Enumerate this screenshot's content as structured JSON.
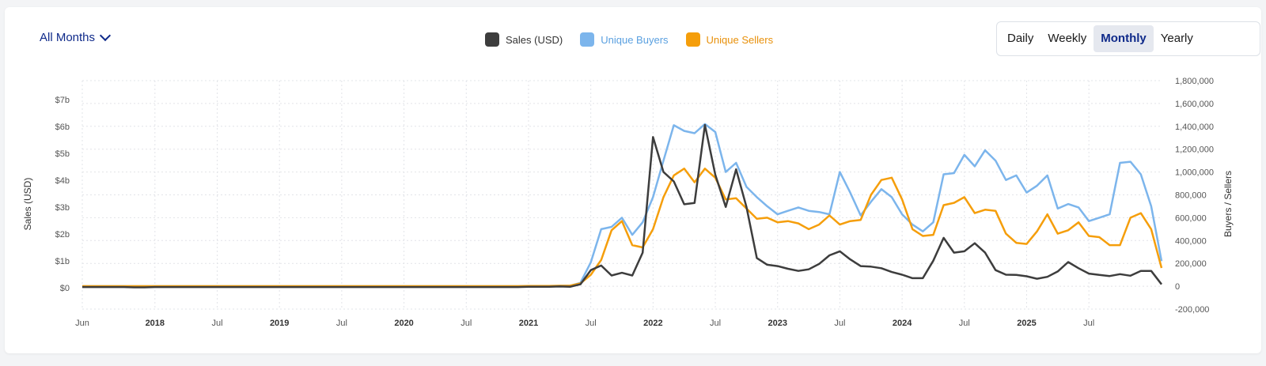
{
  "filter": {
    "label": "All Months"
  },
  "legend": [
    {
      "label": "Sales (USD)",
      "color": "#3d3d3d"
    },
    {
      "label": "Unique Buyers",
      "color": "#7cb5ec"
    },
    {
      "label": "Unique Sellers",
      "color": "#f59e0b"
    }
  ],
  "range_buttons": [
    {
      "label": "Daily",
      "active": false
    },
    {
      "label": "Weekly",
      "active": false
    },
    {
      "label": "Monthly",
      "active": true
    },
    {
      "label": "Yearly",
      "active": false
    }
  ],
  "chart_data": {
    "type": "line",
    "x_labels": [
      "Jun",
      "2018",
      "Jul",
      "2019",
      "Jul",
      "2020",
      "Jul",
      "2021",
      "Jul",
      "2022",
      "Jul",
      "2023",
      "Jul",
      "2024",
      "Jul",
      "2025",
      "Jul"
    ],
    "x_bold_labels": [
      "2018",
      "2019",
      "2020",
      "2021",
      "2022",
      "2023",
      "2024",
      "2025"
    ],
    "y_left": {
      "label": "Sales (USD)",
      "ticks": [
        "$0",
        "$1b",
        "$2b",
        "$3b",
        "$4b",
        "$5b",
        "$6b",
        "$7b"
      ],
      "range": [
        -0.8,
        7.7
      ]
    },
    "y_right": {
      "label": "Buyers / Sellers",
      "ticks": [
        "-200,000",
        "0",
        "200,000",
        "400,000",
        "600,000",
        "800,000",
        "1,000,000",
        "1,200,000",
        "1,400,000",
        "1,600,000",
        "1,800,000"
      ],
      "range": [
        -200000,
        1800000
      ]
    },
    "grid": true,
    "series": [
      {
        "name": "Sales (USD)",
        "axis": "left",
        "color": "#3d3d3d",
        "values": [
          0.02,
          0.02,
          0.02,
          0.02,
          0.02,
          0.01,
          0.01,
          0.02,
          0.02,
          0.02,
          0.02,
          0.02,
          0.02,
          0.02,
          0.02,
          0.02,
          0.02,
          0.02,
          0.02,
          0.02,
          0.02,
          0.02,
          0.02,
          0.02,
          0.02,
          0.02,
          0.02,
          0.02,
          0.02,
          0.02,
          0.02,
          0.02,
          0.02,
          0.02,
          0.02,
          0.02,
          0.02,
          0.02,
          0.02,
          0.02,
          0.02,
          0.02,
          0.02,
          0.03,
          0.03,
          0.03,
          0.04,
          0.03,
          0.12,
          0.65,
          0.82,
          0.45,
          0.55,
          0.45,
          1.3,
          5.6,
          4.3,
          3.95,
          3.1,
          3.15,
          6.05,
          4.2,
          3.0,
          4.4,
          3.0,
          1.1,
          0.85,
          0.8,
          0.7,
          0.62,
          0.68,
          0.88,
          1.2,
          1.35,
          1.05,
          0.8,
          0.78,
          0.72,
          0.58,
          0.48,
          0.35,
          0.35,
          1.0,
          1.85,
          1.3,
          1.35,
          1.65,
          1.3,
          0.65,
          0.48,
          0.47,
          0.42,
          0.33,
          0.4,
          0.6,
          0.95,
          0.72,
          0.52,
          0.47,
          0.43,
          0.5,
          0.44,
          0.62,
          0.62,
          0.12
        ]
      },
      {
        "name": "Unique Buyers",
        "axis": "right",
        "color": "#7cb5ec",
        "values": [
          1000,
          1000,
          1000,
          1000,
          1000,
          1000,
          1000,
          1000,
          1000,
          1000,
          1000,
          1000,
          1000,
          1000,
          1000,
          1000,
          1000,
          1000,
          1000,
          1000,
          1000,
          1000,
          1000,
          1000,
          1000,
          1000,
          1000,
          1000,
          1000,
          1000,
          1000,
          1000,
          1000,
          1000,
          1000,
          1000,
          1000,
          1000,
          1000,
          1000,
          1000,
          1000,
          1000,
          2000,
          3000,
          3000,
          4000,
          5000,
          30000,
          210000,
          500000,
          520000,
          600000,
          450000,
          560000,
          780000,
          1100000,
          1410000,
          1360000,
          1340000,
          1420000,
          1350000,
          1000000,
          1080000,
          870000,
          780000,
          700000,
          630000,
          660000,
          690000,
          660000,
          650000,
          630000,
          1000000,
          820000,
          620000,
          740000,
          850000,
          780000,
          630000,
          540000,
          480000,
          560000,
          980000,
          990000,
          1150000,
          1050000,
          1190000,
          1100000,
          930000,
          970000,
          820000,
          880000,
          970000,
          680000,
          720000,
          690000,
          570000,
          600000,
          630000,
          1080000,
          1090000,
          980000,
          700000,
          220000
        ]
      },
      {
        "name": "Unique Sellers",
        "axis": "right",
        "color": "#f59e0b",
        "values": [
          1000,
          1000,
          1000,
          1000,
          1000,
          1000,
          1000,
          1000,
          1000,
          1000,
          1000,
          1000,
          1000,
          1000,
          1000,
          1000,
          1000,
          1000,
          1000,
          1000,
          1000,
          1000,
          1000,
          1000,
          1000,
          1000,
          1000,
          1000,
          1000,
          1000,
          1000,
          1000,
          1000,
          1000,
          1000,
          1000,
          1000,
          1000,
          1000,
          1000,
          1000,
          1000,
          1000,
          2000,
          3000,
          3000,
          4000,
          5000,
          25000,
          100000,
          230000,
          490000,
          570000,
          360000,
          340000,
          500000,
          780000,
          970000,
          1030000,
          910000,
          1030000,
          950000,
          760000,
          770000,
          680000,
          590000,
          600000,
          560000,
          570000,
          550000,
          500000,
          540000,
          620000,
          540000,
          570000,
          580000,
          800000,
          930000,
          950000,
          760000,
          500000,
          440000,
          450000,
          710000,
          730000,
          780000,
          640000,
          670000,
          660000,
          460000,
          380000,
          370000,
          480000,
          630000,
          460000,
          490000,
          560000,
          440000,
          430000,
          360000,
          360000,
          600000,
          640000,
          500000,
          160000
        ]
      }
    ]
  }
}
